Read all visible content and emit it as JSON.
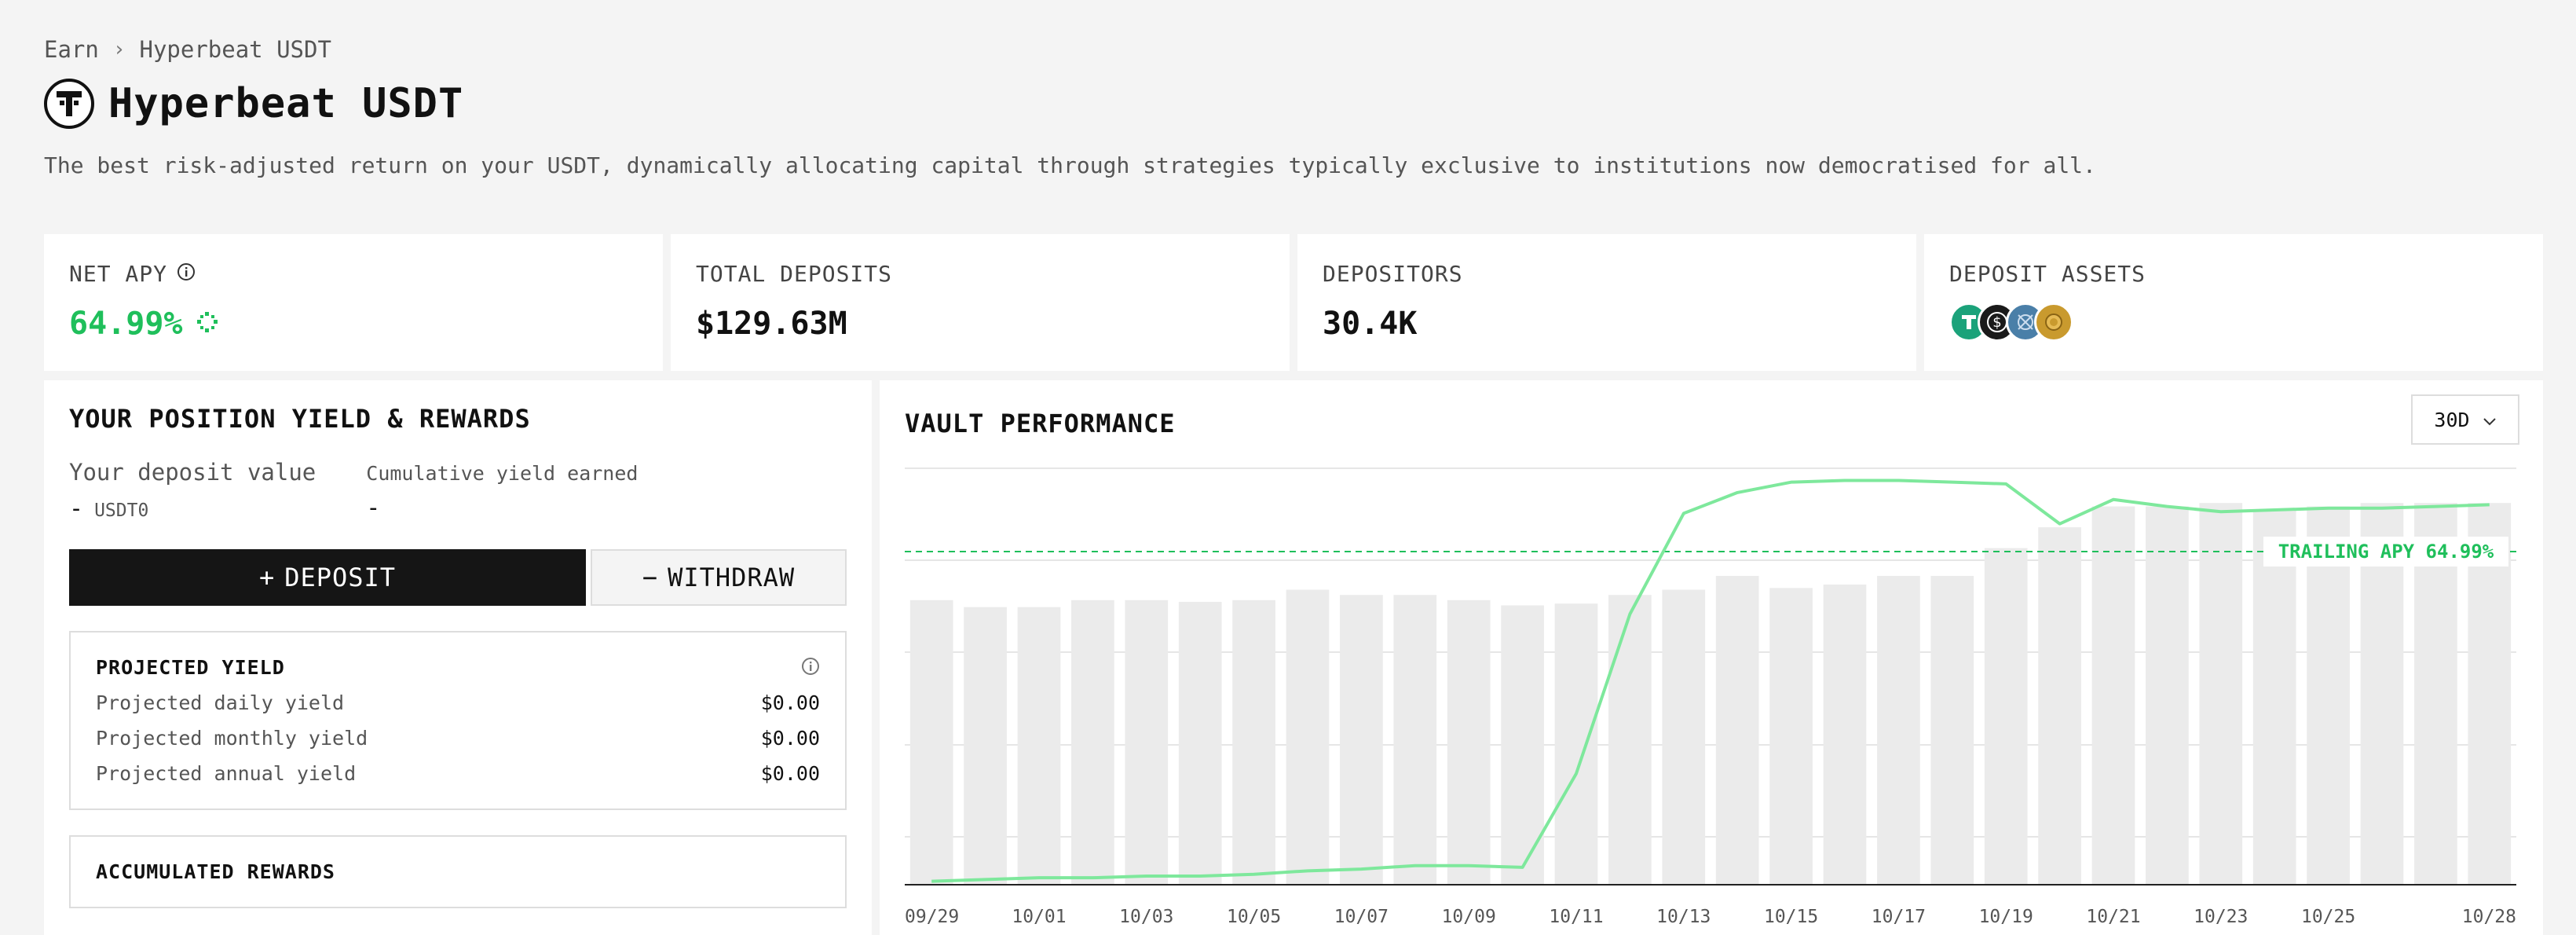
{
  "breadcrumb": {
    "root": "Earn",
    "current": "Hyperbeat USDT"
  },
  "page": {
    "title": "Hyperbeat USDT",
    "description": "The best risk-adjusted return on your USDT, dynamically allocating capital through strategies typically exclusive to institutions now democratised for all."
  },
  "stats": {
    "net_apy": {
      "label": "NET APY",
      "value": "64.99%"
    },
    "total_deposits": {
      "label": "TOTAL DEPOSITS",
      "value": "$129.63M"
    },
    "depositors": {
      "label": "DEPOSITORS",
      "value": "30.4K"
    },
    "deposit_assets": {
      "label": "DEPOSIT ASSETS",
      "icons": [
        "usdt0-icon",
        "dollar-coin-icon",
        "blue-token-icon",
        "gold-token-icon"
      ]
    }
  },
  "position": {
    "title": "YOUR POSITION YIELD & REWARDS",
    "deposit_label": "Your deposit value",
    "deposit_value": "-",
    "deposit_unit": "USDT0",
    "yield_label": "Cumulative yield earned",
    "yield_value": "-",
    "deposit_button": "DEPOSIT",
    "withdraw_button": "WITHDRAW"
  },
  "projected": {
    "title": "PROJECTED YIELD",
    "rows": [
      {
        "label": "Projected daily yield",
        "value": "$0.00"
      },
      {
        "label": "Projected monthly yield",
        "value": "$0.00"
      },
      {
        "label": "Projected annual yield",
        "value": "$0.00"
      }
    ]
  },
  "rewards": {
    "title": "ACCUMULATED REWARDS"
  },
  "vault": {
    "title": "VAULT PERFORMANCE",
    "range": "30D",
    "trailing_label": "TRAILING APY 64.99%"
  },
  "colors": {
    "accent_green": "#1fbf5b",
    "line_green": "#7ee89c",
    "bar_gray": "#ebebeb",
    "dark": "#151515"
  },
  "chart_data": {
    "type": "bar",
    "x": [
      "09/29",
      "09/30",
      "10/01",
      "10/02",
      "10/03",
      "10/04",
      "10/05",
      "10/06",
      "10/07",
      "10/08",
      "10/09",
      "10/10",
      "10/11",
      "10/12",
      "10/13",
      "10/14",
      "10/15",
      "10/16",
      "10/17",
      "10/18",
      "10/19",
      "10/20",
      "10/21",
      "10/22",
      "10/23",
      "10/24",
      "10/25",
      "10/26",
      "10/27",
      "10/28"
    ],
    "tick_labels": [
      "09/29",
      "10/01",
      "10/03",
      "10/05",
      "10/07",
      "10/09",
      "10/11",
      "10/13",
      "10/15",
      "10/17",
      "10/19",
      "10/21",
      "10/23",
      "10/25",
      "10/28"
    ],
    "series": [
      {
        "kind": "bar",
        "values": [
          82,
          80,
          80,
          82,
          82,
          81.5,
          82,
          85,
          83.5,
          83.5,
          82,
          80.5,
          81,
          83.5,
          85,
          89,
          85.5,
          86.5,
          89,
          89,
          97,
          103,
          109,
          109,
          110,
          108,
          109,
          110,
          110,
          110
        ]
      },
      {
        "kind": "line",
        "values": [
          1,
          1.5,
          2,
          2,
          2.5,
          2.5,
          3,
          4,
          4.5,
          5.5,
          5.5,
          5,
          32,
          78,
          107,
          113,
          116,
          116.5,
          116.5,
          116,
          115.5,
          104,
          111,
          109,
          107.5,
          108,
          108.5,
          108.5,
          109,
          109.5
        ]
      }
    ],
    "reference_line": {
      "value": 96,
      "label": "TRAILING APY 64.99%"
    },
    "ylim": [
      0,
      120
    ]
  }
}
